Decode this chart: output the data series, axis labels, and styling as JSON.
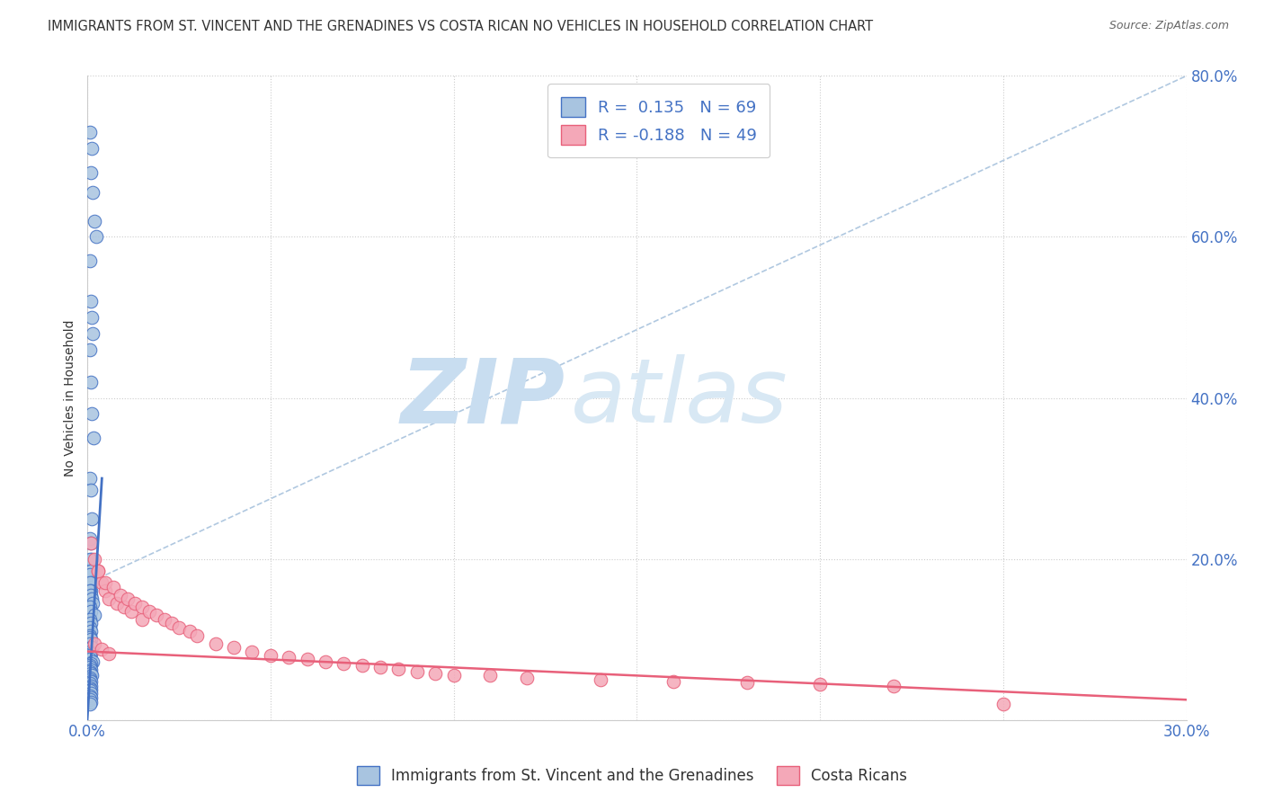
{
  "title": "IMMIGRANTS FROM ST. VINCENT AND THE GRENADINES VS COSTA RICAN NO VEHICLES IN HOUSEHOLD CORRELATION CHART",
  "source": "Source: ZipAtlas.com",
  "blue_label": "Immigrants from St. Vincent and the Grenadines",
  "pink_label": "Costa Ricans",
  "blue_r": "0.135",
  "blue_n": "69",
  "pink_r": "-0.188",
  "pink_n": "49",
  "blue_color": "#a8c4e0",
  "pink_color": "#f4a8b8",
  "blue_line_color": "#4472c4",
  "pink_line_color": "#e8607a",
  "diag_line_color": "#b0c8e0",
  "watermark_zip_color": "#c8ddf0",
  "watermark_atlas_color": "#d8e8f4",
  "xlim": [
    0.0,
    0.3
  ],
  "ylim": [
    0.0,
    0.8
  ],
  "blue_points_x": [
    0.0008,
    0.0012,
    0.001,
    0.0015,
    0.002,
    0.0025,
    0.0008,
    0.001,
    0.0012,
    0.0015,
    0.0008,
    0.001,
    0.0012,
    0.0018,
    0.0008,
    0.001,
    0.0012,
    0.0008,
    0.001,
    0.0012,
    0.0008,
    0.001,
    0.0008,
    0.0012,
    0.0008,
    0.001,
    0.0008,
    0.001,
    0.0012,
    0.0015,
    0.0008,
    0.001,
    0.002,
    0.0008,
    0.001,
    0.0008,
    0.001,
    0.0008,
    0.0008,
    0.001,
    0.0008,
    0.001,
    0.0012,
    0.0008,
    0.001,
    0.0008,
    0.0008,
    0.0015,
    0.001,
    0.0008,
    0.0008,
    0.001,
    0.0008,
    0.001,
    0.0012,
    0.0008,
    0.0008,
    0.001,
    0.0008,
    0.001,
    0.0008,
    0.001,
    0.0008,
    0.001,
    0.0008,
    0.001,
    0.0008,
    0.001,
    0.0008
  ],
  "blue_points_y": [
    0.73,
    0.71,
    0.68,
    0.655,
    0.62,
    0.6,
    0.57,
    0.52,
    0.5,
    0.48,
    0.46,
    0.42,
    0.38,
    0.35,
    0.3,
    0.285,
    0.25,
    0.225,
    0.22,
    0.2,
    0.2,
    0.185,
    0.18,
    0.17,
    0.17,
    0.16,
    0.16,
    0.155,
    0.15,
    0.145,
    0.14,
    0.135,
    0.13,
    0.125,
    0.12,
    0.115,
    0.11,
    0.105,
    0.102,
    0.1,
    0.095,
    0.09,
    0.09,
    0.085,
    0.082,
    0.08,
    0.075,
    0.072,
    0.07,
    0.068,
    0.065,
    0.062,
    0.06,
    0.058,
    0.055,
    0.052,
    0.05,
    0.048,
    0.045,
    0.042,
    0.04,
    0.038,
    0.036,
    0.033,
    0.03,
    0.028,
    0.025,
    0.022,
    0.02
  ],
  "pink_points_x": [
    0.001,
    0.002,
    0.003,
    0.004,
    0.005,
    0.006,
    0.008,
    0.01,
    0.012,
    0.015,
    0.003,
    0.005,
    0.007,
    0.009,
    0.011,
    0.013,
    0.015,
    0.017,
    0.019,
    0.021,
    0.023,
    0.025,
    0.028,
    0.03,
    0.035,
    0.04,
    0.045,
    0.05,
    0.055,
    0.06,
    0.065,
    0.07,
    0.075,
    0.08,
    0.085,
    0.09,
    0.095,
    0.1,
    0.11,
    0.12,
    0.14,
    0.16,
    0.18,
    0.2,
    0.22,
    0.002,
    0.004,
    0.006,
    0.25
  ],
  "pink_points_y": [
    0.22,
    0.2,
    0.185,
    0.17,
    0.16,
    0.15,
    0.145,
    0.14,
    0.135,
    0.125,
    0.185,
    0.17,
    0.165,
    0.155,
    0.15,
    0.145,
    0.14,
    0.135,
    0.13,
    0.125,
    0.12,
    0.115,
    0.11,
    0.105,
    0.095,
    0.09,
    0.085,
    0.08,
    0.078,
    0.075,
    0.072,
    0.07,
    0.068,
    0.065,
    0.063,
    0.06,
    0.058,
    0.055,
    0.055,
    0.052,
    0.05,
    0.048,
    0.046,
    0.044,
    0.042,
    0.095,
    0.088,
    0.082,
    0.02
  ],
  "blue_trend_x": [
    0.0,
    0.004
  ],
  "blue_trend_y": [
    0.0,
    0.3
  ],
  "pink_trend_x": [
    0.0,
    0.3
  ],
  "pink_trend_y": [
    0.085,
    0.025
  ],
  "diag_trend_x": [
    0.005,
    0.3
  ],
  "diag_trend_y": [
    0.18,
    0.8
  ]
}
